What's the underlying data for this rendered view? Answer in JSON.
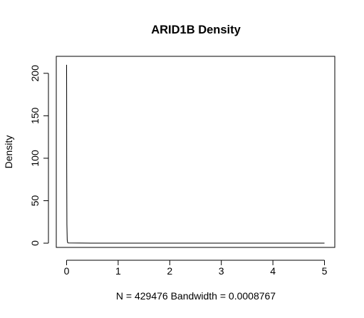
{
  "chart_data": {
    "type": "line",
    "title": "ARID1B Density",
    "xlabel": "N = 429476   Bandwidth = 0.0008767",
    "ylabel": "Density",
    "xlim": [
      -0.2,
      5.2
    ],
    "ylim": [
      -5,
      220
    ],
    "x_ticks": [
      "0",
      "1",
      "2",
      "3",
      "4",
      "5"
    ],
    "y_ticks": [
      "0",
      "50",
      "100",
      "150",
      "200"
    ],
    "grid": false,
    "legend": "none",
    "series": [
      {
        "x": [
          0.0,
          0.0013,
          0.0026,
          0.006,
          0.012,
          0.02,
          0.03,
          0.5,
          1,
          2,
          3,
          4,
          5
        ],
        "values": [
          210,
          178,
          88,
          22,
          4,
          0.8,
          0.2,
          0.02,
          0.02,
          0.02,
          0.02,
          0.02,
          0.0
        ]
      }
    ],
    "colors": {
      "line": "#000000",
      "axis": "#000000"
    }
  }
}
